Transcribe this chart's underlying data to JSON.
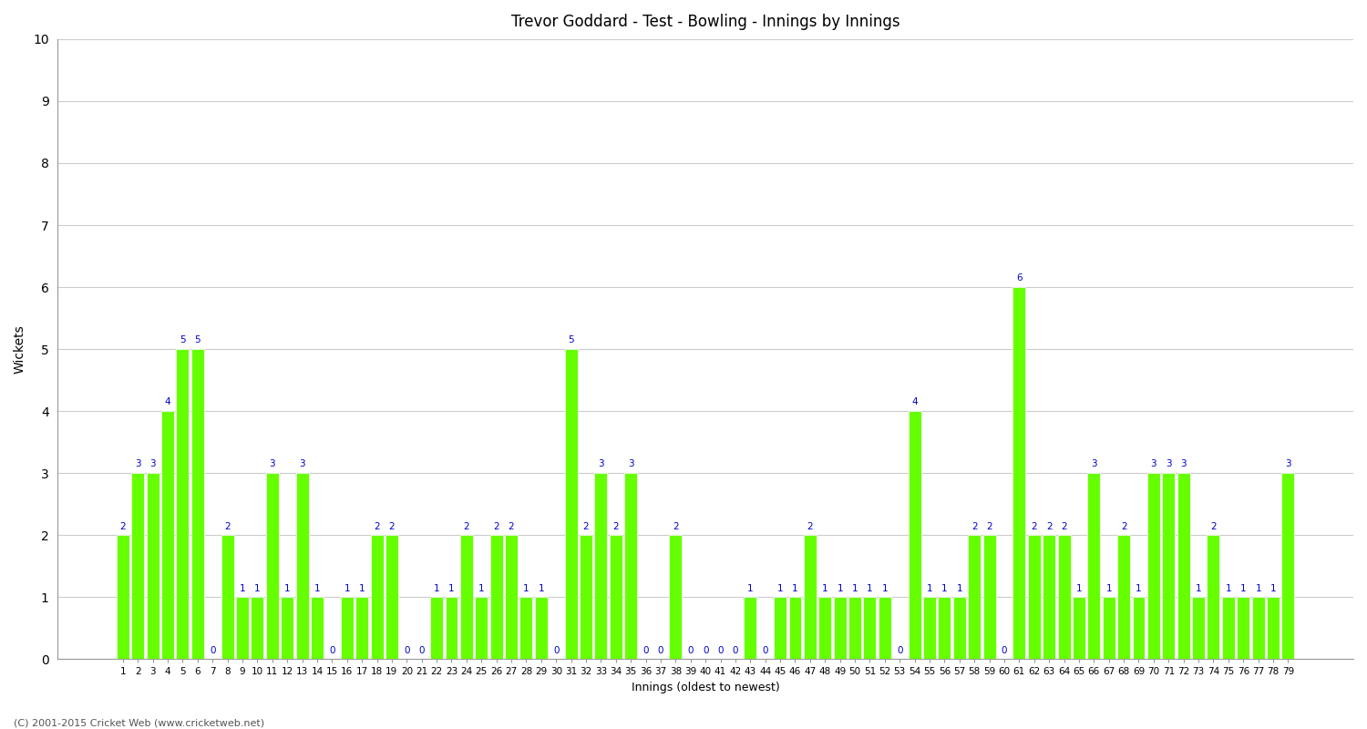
{
  "title": "Trevor Goddard - Test - Bowling - Innings by Innings",
  "xlabel": "Innings (oldest to newest)",
  "ylabel": "Wickets",
  "ylim": [
    0,
    10
  ],
  "yticks": [
    0,
    1,
    2,
    3,
    4,
    5,
    6,
    7,
    8,
    9,
    10
  ],
  "bar_color": "#66ff00",
  "bar_edge_color": "#ffffff",
  "background_color": "#ffffff",
  "grid_color": "#cccccc",
  "label_color": "#0000cc",
  "footnote": "(C) 2001-2015 Cricket Web (www.cricketweb.net)",
  "innings_labels": [
    "1",
    "2",
    "3",
    "4",
    "5",
    "6",
    "7",
    "8",
    "9",
    "10",
    "11",
    "12",
    "13",
    "14",
    "15",
    "16",
    "17",
    "18",
    "19",
    "20",
    "21",
    "22",
    "23",
    "24",
    "25",
    "26",
    "27",
    "28",
    "29",
    "30",
    "31",
    "32",
    "33",
    "34",
    "35",
    "36",
    "37",
    "38",
    "39",
    "40",
    "41",
    "42",
    "43",
    "44",
    "45",
    "46",
    "47",
    "48",
    "49",
    "50",
    "51",
    "52",
    "53",
    "54",
    "55",
    "56",
    "57",
    "58",
    "59",
    "60",
    "61",
    "62",
    "63",
    "64",
    "65",
    "66",
    "67",
    "68",
    "69",
    "70",
    "71",
    "72",
    "73",
    "74",
    "75",
    "76",
    "77",
    "78",
    "79"
  ],
  "wickets": [
    2,
    3,
    3,
    4,
    5,
    5,
    0,
    2,
    1,
    1,
    3,
    1,
    3,
    1,
    0,
    1,
    1,
    2,
    2,
    0,
    0,
    1,
    1,
    2,
    1,
    2,
    2,
    1,
    1,
    0,
    5,
    2,
    3,
    2,
    3,
    0,
    0,
    2,
    0,
    0,
    0,
    0,
    1,
    0,
    1,
    1,
    2,
    1,
    1,
    1,
    1,
    1,
    0,
    4,
    1,
    1,
    1,
    2,
    2,
    0,
    6,
    2,
    2,
    2,
    1,
    3,
    1,
    2,
    1,
    3,
    3,
    3,
    1,
    2,
    1,
    1,
    1,
    1,
    3
  ]
}
